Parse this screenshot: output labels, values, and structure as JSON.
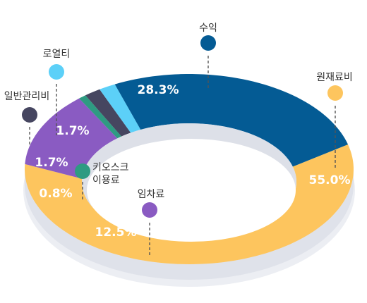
{
  "chart_data": {
    "type": "pie",
    "donut": true,
    "categories": [
      "원재료비",
      "임차료",
      "키오스크 이용료",
      "일반관리비",
      "로열티",
      "수익"
    ],
    "values": [
      55.0,
      12.5,
      0.8,
      1.7,
      1.7,
      28.3
    ],
    "value_labels": [
      "55.0%",
      "12.5%",
      "0.8%",
      "1.7%",
      "1.7%",
      "28.3%"
    ],
    "category_label_lines": [
      [
        "원재료비"
      ],
      [
        "임차료"
      ],
      [
        "키오스크",
        "이용료"
      ],
      [
        "일반관리비"
      ],
      [
        "로열티"
      ],
      [
        "수익"
      ]
    ],
    "colors": [
      "#FDC55E",
      "#8A5BC2",
      "#2E9B82",
      "#464660",
      "#5CD0F8",
      "#045B94"
    ]
  }
}
